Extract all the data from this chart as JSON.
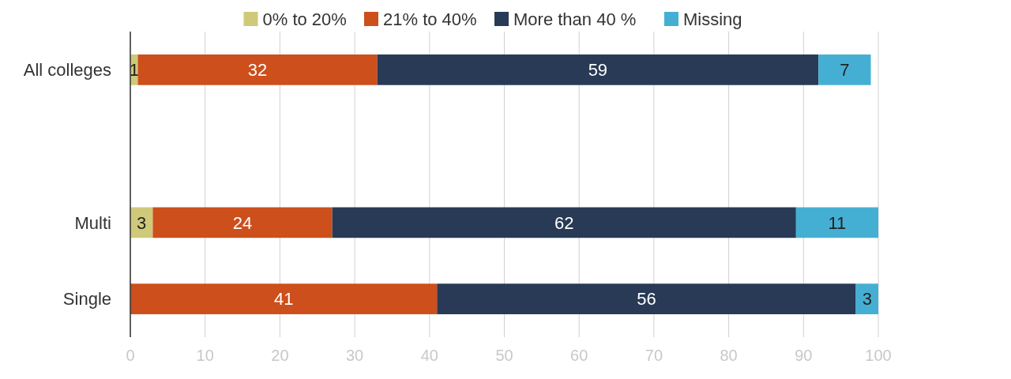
{
  "chart_data": {
    "type": "bar",
    "orientation": "horizontal",
    "stacked": true,
    "categories": [
      "All colleges",
      null,
      "Multi",
      "Single"
    ],
    "series": [
      {
        "name": "0% to 20%",
        "color": "#cfc97a",
        "values": [
          1,
          null,
          3,
          null
        ]
      },
      {
        "name": "21% to 40%",
        "color": "#cc4f1c",
        "values": [
          32,
          null,
          24,
          41
        ]
      },
      {
        "name": "More than 40 %",
        "color": "#283a55",
        "values": [
          59,
          null,
          62,
          56
        ]
      },
      {
        "name": "Missing",
        "color": "#45afd3",
        "values": [
          7,
          null,
          11,
          3
        ]
      }
    ],
    "xlim": [
      0,
      100
    ],
    "xticks": [
      0,
      10,
      20,
      30,
      40,
      50,
      60,
      70,
      80,
      90,
      100
    ],
    "grid": "x",
    "legend": "top",
    "data_labels": true
  }
}
